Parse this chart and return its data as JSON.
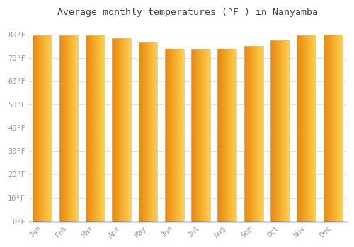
{
  "title": "Average monthly temperatures (°F ) in Nanyamba",
  "months": [
    "Jan",
    "Feb",
    "Mar",
    "Apr",
    "May",
    "Jun",
    "Jul",
    "Aug",
    "Sep",
    "Oct",
    "Nov",
    "Dec"
  ],
  "values": [
    79.5,
    79.5,
    79.7,
    78.5,
    76.5,
    74.0,
    73.5,
    74.0,
    75.0,
    77.5,
    79.5,
    80.0
  ],
  "bar_color_left": "#E8870A",
  "bar_color_right": "#FFD050",
  "bar_edge_color": "#C0C0C0",
  "background_color": "#FFFFFF",
  "grid_color": "#DDDDDD",
  "ylim": [
    0,
    85
  ],
  "title_fontsize": 9.5,
  "tick_fontsize": 7.5,
  "title_color": "#444444",
  "tick_color": "#999999",
  "axis_color": "#333333"
}
